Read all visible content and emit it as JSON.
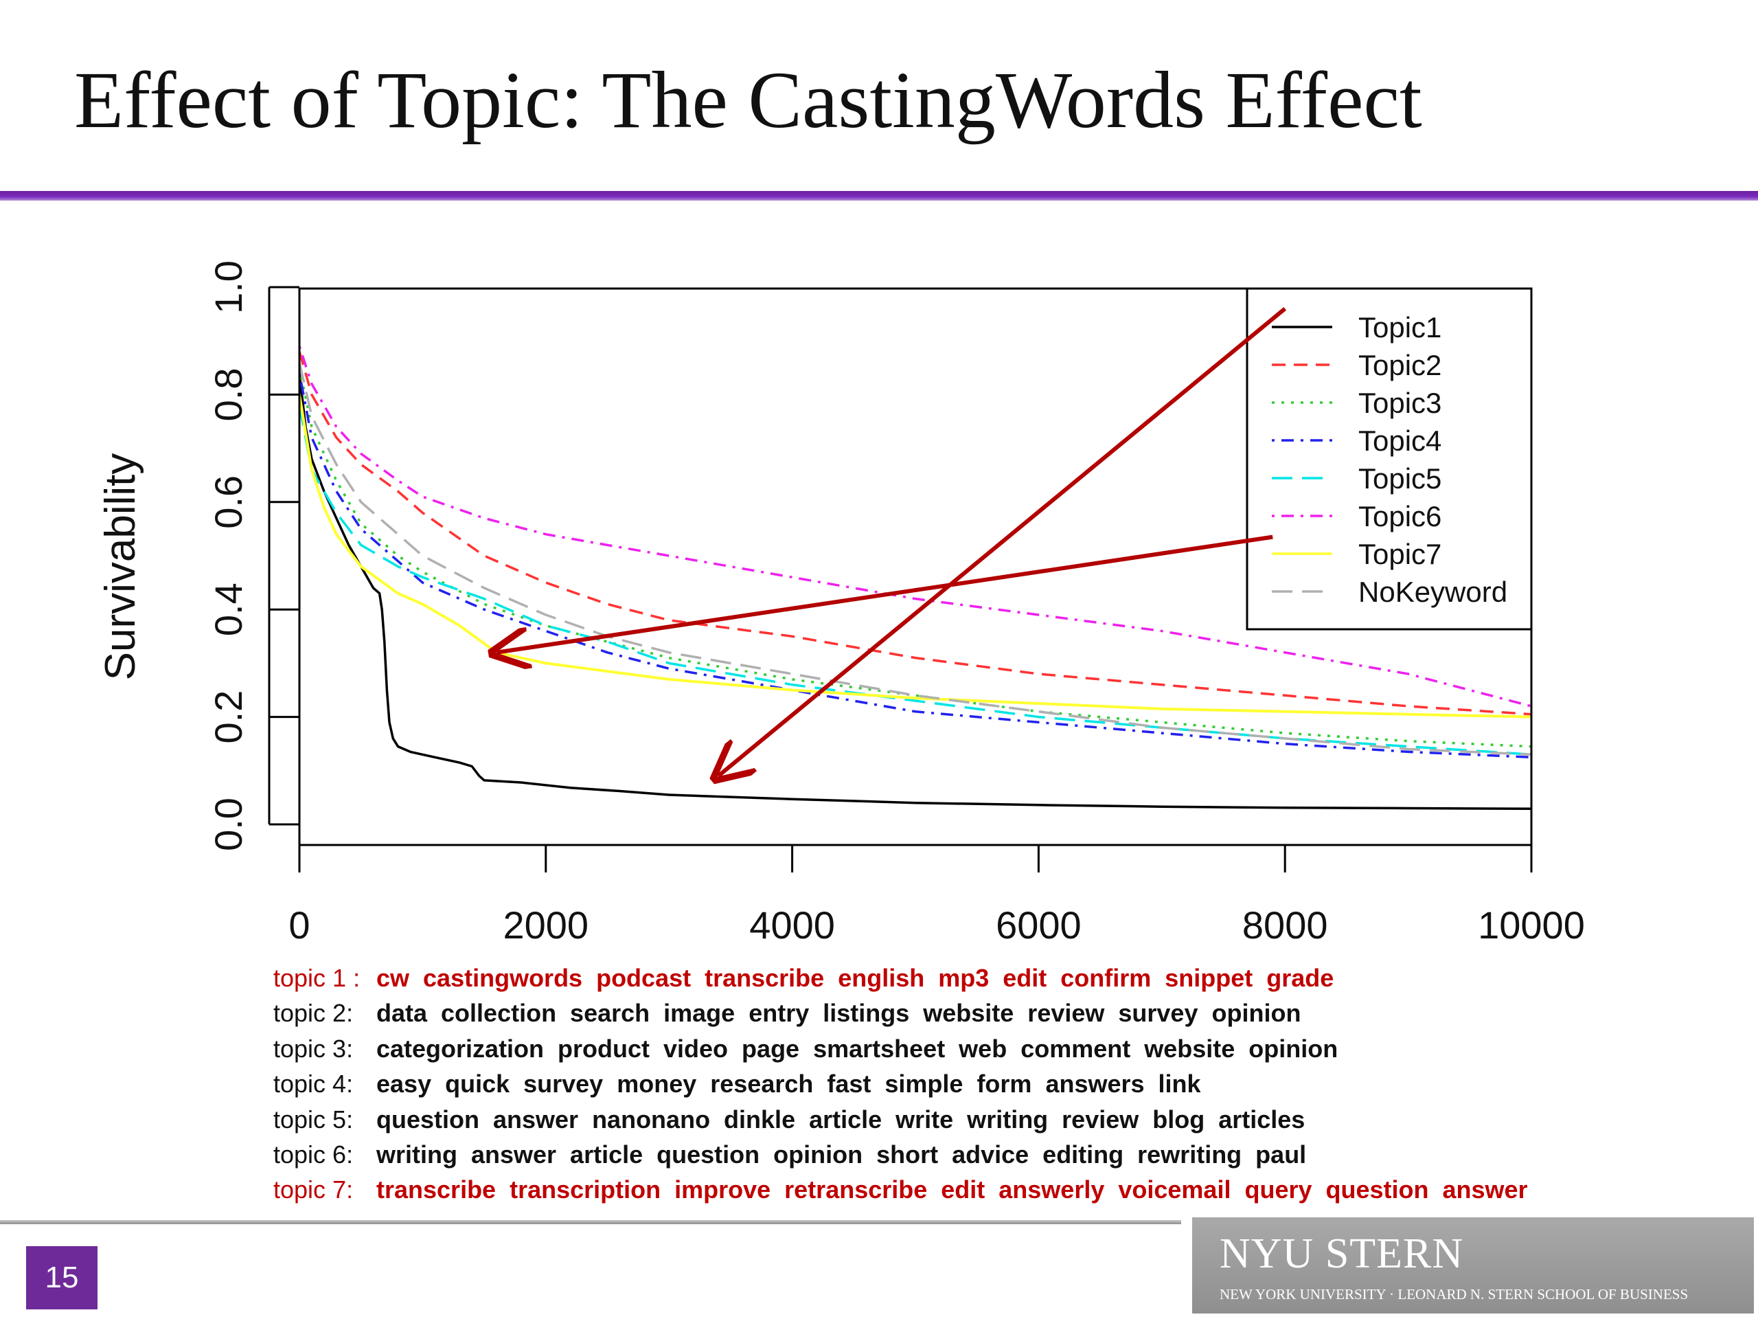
{
  "slide": {
    "title": "Effect of Topic: The CastingWords Effect",
    "page_number": "15",
    "logo_text": "NYU STERN",
    "logo_subtext": "NEW YORK UNIVERSITY · LEONARD N. STERN SCHOOL OF BUSINESS",
    "accent_color": "#7b2cbf",
    "highlight_color": "#c00000"
  },
  "chart_data": {
    "type": "line",
    "title": "",
    "xlabel": "",
    "ylabel": "Survivability",
    "xlim": [
      0,
      10000
    ],
    "ylim": [
      0,
      1.0
    ],
    "x_ticks": [
      "0",
      "2000",
      "4000",
      "6000",
      "8000",
      "10000"
    ],
    "y_ticks": [
      "0.0",
      "0.2",
      "0.4",
      "0.6",
      "0.8",
      "1.0"
    ],
    "legend_position": "top-right",
    "series": [
      {
        "name": "Topic1",
        "color": "#000000",
        "dash": "solid",
        "points": [
          [
            0,
            0.84
          ],
          [
            50,
            0.74
          ],
          [
            100,
            0.68
          ],
          [
            200,
            0.62
          ],
          [
            300,
            0.57
          ],
          [
            400,
            0.52
          ],
          [
            500,
            0.48
          ],
          [
            600,
            0.44
          ],
          [
            650,
            0.43
          ],
          [
            670,
            0.4
          ],
          [
            690,
            0.34
          ],
          [
            710,
            0.25
          ],
          [
            730,
            0.19
          ],
          [
            760,
            0.16
          ],
          [
            800,
            0.145
          ],
          [
            900,
            0.135
          ],
          [
            1100,
            0.125
          ],
          [
            1300,
            0.115
          ],
          [
            1400,
            0.108
          ],
          [
            1460,
            0.09
          ],
          [
            1500,
            0.082
          ],
          [
            1800,
            0.078
          ],
          [
            2200,
            0.068
          ],
          [
            2600,
            0.062
          ],
          [
            3000,
            0.055
          ],
          [
            4000,
            0.047
          ],
          [
            5000,
            0.04
          ],
          [
            6000,
            0.036
          ],
          [
            7000,
            0.033
          ],
          [
            8000,
            0.031
          ],
          [
            9000,
            0.03
          ],
          [
            10000,
            0.029
          ]
        ]
      },
      {
        "name": "Topic2",
        "color": "#ff3333",
        "dash": "dashed",
        "points": [
          [
            0,
            0.88
          ],
          [
            100,
            0.8
          ],
          [
            300,
            0.72
          ],
          [
            500,
            0.67
          ],
          [
            800,
            0.62
          ],
          [
            1000,
            0.58
          ],
          [
            1500,
            0.5
          ],
          [
            2000,
            0.45
          ],
          [
            2500,
            0.41
          ],
          [
            3000,
            0.38
          ],
          [
            4000,
            0.35
          ],
          [
            5000,
            0.31
          ],
          [
            6000,
            0.28
          ],
          [
            7000,
            0.26
          ],
          [
            8000,
            0.24
          ],
          [
            9000,
            0.22
          ],
          [
            10000,
            0.205
          ]
        ]
      },
      {
        "name": "Topic3",
        "color": "#33cc33",
        "dash": "dotted",
        "points": [
          [
            0,
            0.85
          ],
          [
            100,
            0.74
          ],
          [
            300,
            0.64
          ],
          [
            500,
            0.56
          ],
          [
            800,
            0.5
          ],
          [
            1000,
            0.47
          ],
          [
            1500,
            0.41
          ],
          [
            2000,
            0.37
          ],
          [
            2500,
            0.34
          ],
          [
            3000,
            0.31
          ],
          [
            4000,
            0.27
          ],
          [
            5000,
            0.24
          ],
          [
            6000,
            0.21
          ],
          [
            7000,
            0.19
          ],
          [
            8000,
            0.17
          ],
          [
            9000,
            0.155
          ],
          [
            10000,
            0.145
          ]
        ]
      },
      {
        "name": "Topic4",
        "color": "#2222ee",
        "dash": "dashdot",
        "points": [
          [
            0,
            0.84
          ],
          [
            100,
            0.72
          ],
          [
            300,
            0.62
          ],
          [
            500,
            0.55
          ],
          [
            800,
            0.49
          ],
          [
            1000,
            0.45
          ],
          [
            1500,
            0.4
          ],
          [
            2000,
            0.36
          ],
          [
            2500,
            0.32
          ],
          [
            3000,
            0.29
          ],
          [
            4000,
            0.25
          ],
          [
            5000,
            0.21
          ],
          [
            6000,
            0.19
          ],
          [
            7000,
            0.17
          ],
          [
            8000,
            0.15
          ],
          [
            9000,
            0.135
          ],
          [
            10000,
            0.125
          ]
        ]
      },
      {
        "name": "Topic5",
        "color": "#00e5e5",
        "dash": "longdash",
        "points": [
          [
            0,
            0.78
          ],
          [
            100,
            0.66
          ],
          [
            300,
            0.58
          ],
          [
            500,
            0.52
          ],
          [
            800,
            0.48
          ],
          [
            1000,
            0.46
          ],
          [
            1500,
            0.42
          ],
          [
            2000,
            0.37
          ],
          [
            2500,
            0.34
          ],
          [
            3000,
            0.3
          ],
          [
            4000,
            0.26
          ],
          [
            5000,
            0.23
          ],
          [
            6000,
            0.2
          ],
          [
            7000,
            0.18
          ],
          [
            8000,
            0.16
          ],
          [
            9000,
            0.145
          ],
          [
            10000,
            0.13
          ]
        ]
      },
      {
        "name": "Topic6",
        "color": "#ee22ee",
        "dash": "dashdot",
        "points": [
          [
            0,
            0.89
          ],
          [
            100,
            0.82
          ],
          [
            300,
            0.74
          ],
          [
            500,
            0.69
          ],
          [
            800,
            0.64
          ],
          [
            1000,
            0.61
          ],
          [
            1500,
            0.57
          ],
          [
            2000,
            0.54
          ],
          [
            2500,
            0.52
          ],
          [
            3000,
            0.5
          ],
          [
            4000,
            0.46
          ],
          [
            5000,
            0.42
          ],
          [
            6000,
            0.39
          ],
          [
            7000,
            0.36
          ],
          [
            8000,
            0.32
          ],
          [
            9000,
            0.28
          ],
          [
            10000,
            0.22
          ]
        ]
      },
      {
        "name": "Topic7",
        "color": "#ffff33",
        "dash": "solid",
        "points": [
          [
            0,
            0.8
          ],
          [
            100,
            0.66
          ],
          [
            200,
            0.59
          ],
          [
            300,
            0.54
          ],
          [
            500,
            0.48
          ],
          [
            800,
            0.43
          ],
          [
            1000,
            0.41
          ],
          [
            1300,
            0.37
          ],
          [
            1600,
            0.32
          ],
          [
            2000,
            0.3
          ],
          [
            3000,
            0.27
          ],
          [
            4000,
            0.25
          ],
          [
            5000,
            0.235
          ],
          [
            6000,
            0.225
          ],
          [
            7000,
            0.215
          ],
          [
            8000,
            0.21
          ],
          [
            9000,
            0.205
          ],
          [
            10000,
            0.2
          ]
        ]
      },
      {
        "name": "NoKeyword",
        "color": "#b0b0b0",
        "dash": "longdash",
        "points": [
          [
            0,
            0.86
          ],
          [
            100,
            0.76
          ],
          [
            300,
            0.67
          ],
          [
            500,
            0.6
          ],
          [
            800,
            0.54
          ],
          [
            1000,
            0.5
          ],
          [
            1500,
            0.44
          ],
          [
            2000,
            0.39
          ],
          [
            2500,
            0.35
          ],
          [
            3000,
            0.32
          ],
          [
            4000,
            0.28
          ],
          [
            5000,
            0.24
          ],
          [
            6000,
            0.21
          ],
          [
            7000,
            0.18
          ],
          [
            8000,
            0.16
          ],
          [
            9000,
            0.14
          ],
          [
            10000,
            0.13
          ]
        ]
      }
    ],
    "annotations": [
      {
        "type": "arrow",
        "color": "#b30000",
        "from": [
          8000,
          0.96
        ],
        "to": [
          3400,
          0.09
        ]
      },
      {
        "type": "arrow",
        "color": "#b30000",
        "from": [
          7900,
          0.535
        ],
        "to": [
          1600,
          0.32
        ]
      }
    ]
  },
  "keywords": [
    {
      "label": "topic 1 :",
      "words": "cw  castingwords  podcast  transcribe  english  mp3  edit  confirm  snippet  grade",
      "highlight": true
    },
    {
      "label": "topic 2:",
      "words": "data  collection  search  image  entry  listings  website  review  survey  opinion",
      "highlight": false
    },
    {
      "label": "topic 3:",
      "words": "categorization  product  video  page  smartsheet  web  comment  website  opinion",
      "highlight": false
    },
    {
      "label": "topic 4:",
      "words": "easy  quick  survey  money  research  fast  simple  form  answers  link",
      "highlight": false
    },
    {
      "label": "topic 5:",
      "words": "question  answer  nanonano  dinkle  article  write  writing  review  blog  articles",
      "highlight": false
    },
    {
      "label": "topic 6:",
      "words": "writing  answer  article  question  opinion  short  advice  editing  rewriting  paul",
      "highlight": false
    },
    {
      "label": "topic 7:",
      "words": "transcribe  transcription  improve  retranscribe  edit  answerly  voicemail  query  question  answer",
      "highlight": true
    }
  ]
}
